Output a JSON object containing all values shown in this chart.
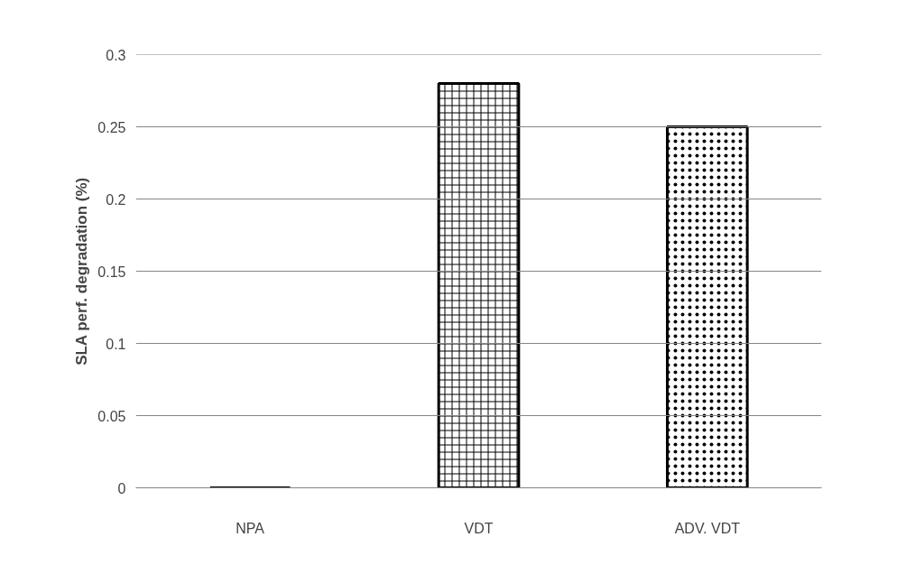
{
  "chart_data": {
    "type": "bar",
    "ylabel": "SLA perf. degradation (%)",
    "categories": [
      "NPA",
      "VDT",
      "ADV. VDT"
    ],
    "values": [
      0,
      0.28,
      0.25
    ],
    "colors": [
      "#000000",
      "#000000",
      "#000000"
    ],
    "ylim": [
      0,
      0.3
    ],
    "yticks": [
      0,
      0.05,
      0.1,
      0.15,
      0.2,
      0.25,
      0.3
    ],
    "grid": "y"
  }
}
